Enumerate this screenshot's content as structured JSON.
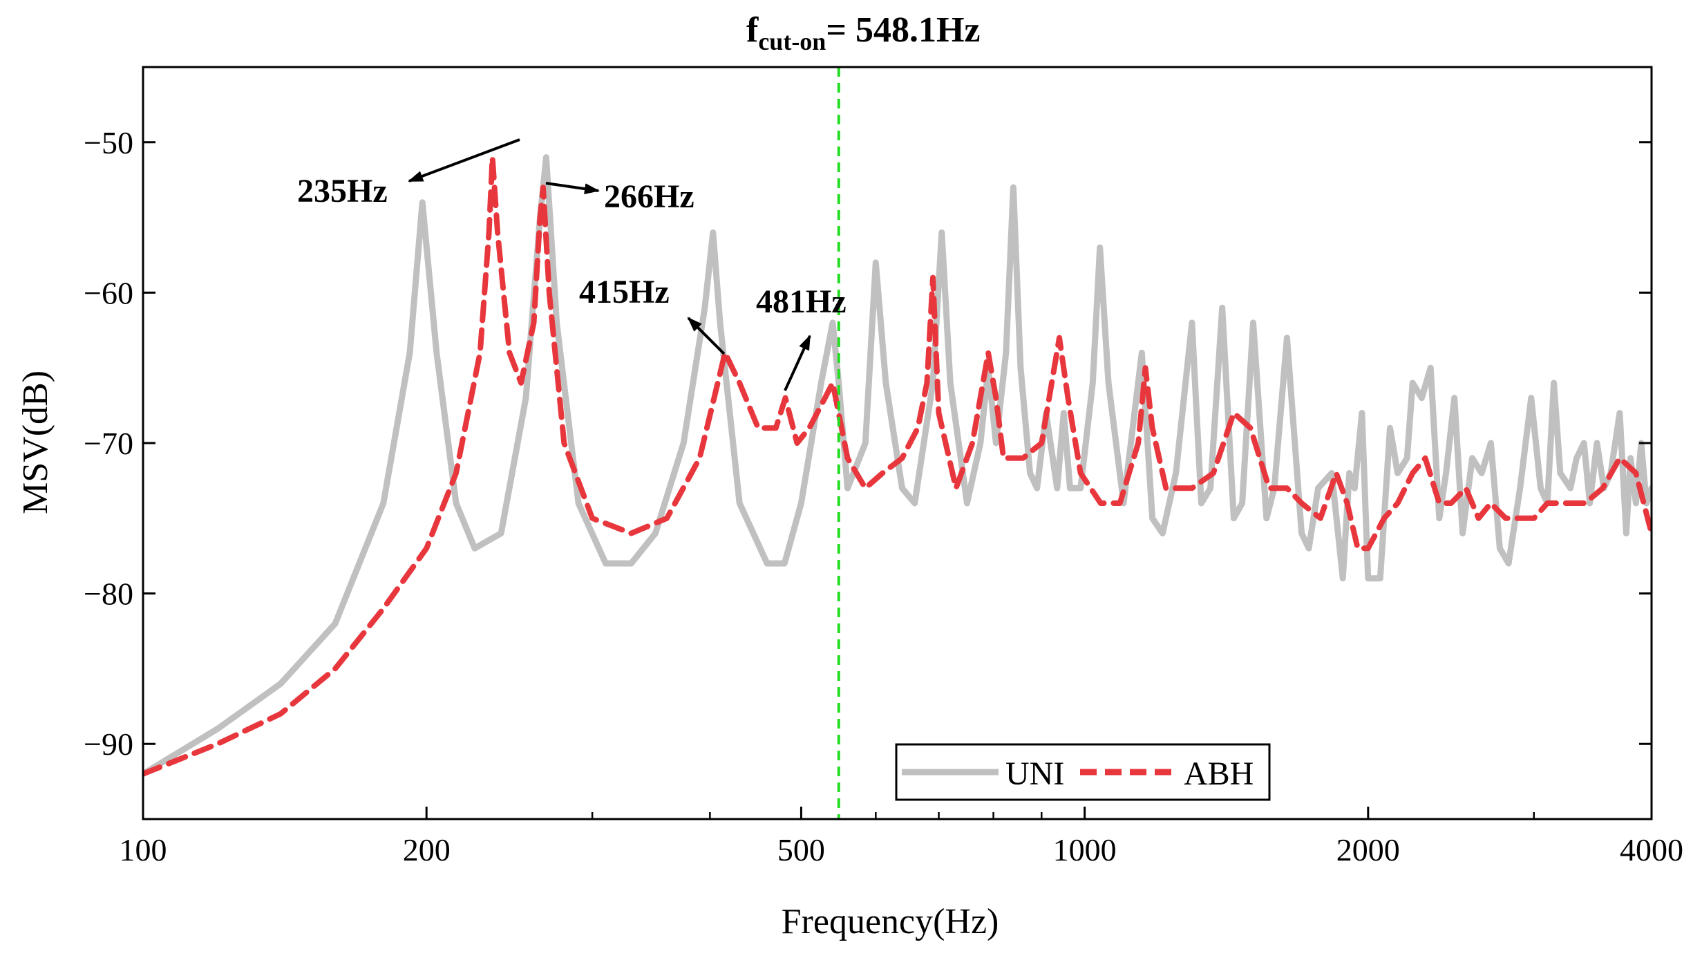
{
  "chart_data": {
    "type": "line",
    "title_main": "f",
    "title_sub": "cut-on",
    "title_rest": "= 548.1Hz",
    "xlabel": "Frequency(Hz)",
    "ylabel": "MSV(dB)",
    "xscale": "log",
    "xlim": [
      100,
      4000
    ],
    "ylim": [
      -95,
      -45
    ],
    "xticks": [
      100,
      200,
      500,
      1000,
      2000,
      4000
    ],
    "xtick_labels": [
      "100",
      "200",
      "500",
      "1000",
      "2000",
      "4000"
    ],
    "yticks": [
      -50,
      -60,
      -70,
      -80,
      -90
    ],
    "ytick_labels": [
      "−50",
      "−60",
      "−70",
      "−80",
      "−90"
    ],
    "cut_on_frequency": 548.1,
    "colors": {
      "uni": "#c0c0c0",
      "abh": "#e8363d",
      "cut_on": "#22dd22"
    },
    "legend_position": "bottom-center",
    "series": [
      {
        "name": "UNI",
        "style": "solid",
        "x": [
          100,
          120,
          140,
          160,
          180,
          192,
          198,
          205,
          215,
          225,
          240,
          255,
          264,
          268,
          275,
          290,
          310,
          330,
          350,
          375,
          395,
          403,
          410,
          430,
          460,
          480,
          500,
          525,
          540,
          548,
          560,
          585,
          600,
          615,
          640,
          660,
          690,
          705,
          720,
          750,
          775,
          790,
          805,
          825,
          840,
          855,
          875,
          890,
          910,
          935,
          950,
          965,
          990,
          1020,
          1038,
          1060,
          1100,
          1150,
          1180,
          1210,
          1250,
          1300,
          1330,
          1360,
          1400,
          1440,
          1470,
          1510,
          1560,
          1590,
          1640,
          1700,
          1730,
          1770,
          1830,
          1880,
          1910,
          1935,
          1970,
          2000,
          2060,
          2110,
          2150,
          2200,
          2230,
          2280,
          2330,
          2380,
          2420,
          2470,
          2520,
          2580,
          2640,
          2700,
          2760,
          2820,
          2900,
          2980,
          3050,
          3100,
          3150,
          3200,
          3280,
          3330,
          3390,
          3440,
          3500,
          3560,
          3620,
          3700,
          3760,
          3800,
          3850,
          3900,
          3950,
          4000
        ],
        "y": [
          -92,
          -89,
          -86,
          -82,
          -74,
          -64,
          -54,
          -64,
          -74,
          -77,
          -76,
          -67,
          -55,
          -51,
          -62,
          -74,
          -78,
          -78,
          -76,
          -70,
          -61,
          -56,
          -62,
          -74,
          -78,
          -78,
          -74,
          -66,
          -62,
          -66,
          -73,
          -70,
          -58,
          -66,
          -73,
          -74,
          -66,
          -56,
          -66,
          -74,
          -70,
          -65,
          -70,
          -64,
          -53,
          -65,
          -72,
          -73,
          -68,
          -73,
          -68,
          -73,
          -73,
          -66,
          -57,
          -66,
          -74,
          -64,
          -75,
          -76,
          -72,
          -62,
          -74,
          -73,
          -61,
          -75,
          -74,
          -62,
          -75,
          -73,
          -63,
          -76,
          -77,
          -73,
          -72,
          -79,
          -72,
          -73,
          -68,
          -79,
          -79,
          -69,
          -72,
          -71,
          -66,
          -67,
          -65,
          -75,
          -72,
          -67,
          -76,
          -71,
          -72,
          -70,
          -77,
          -78,
          -73,
          -67,
          -73,
          -74,
          -66,
          -72,
          -73,
          -71,
          -70,
          -74,
          -70,
          -73,
          -72,
          -68,
          -76,
          -71,
          -74,
          -70,
          -74,
          -73
        ],
        "labels_visible": [
          "UNI"
        ]
      },
      {
        "name": "ABH",
        "style": "dashed",
        "x": [
          100,
          120,
          140,
          160,
          180,
          200,
          215,
          228,
          233,
          235,
          238,
          245,
          252,
          260,
          264,
          266,
          270,
          280,
          300,
          330,
          360,
          390,
          415,
          430,
          450,
          470,
          481,
          495,
          510,
          530,
          540,
          560,
          585,
          610,
          640,
          665,
          680,
          690,
          700,
          730,
          760,
          790,
          805,
          820,
          860,
          900,
          940,
          960,
          990,
          1040,
          1090,
          1140,
          1160,
          1180,
          1220,
          1300,
          1370,
          1440,
          1500,
          1570,
          1640,
          1700,
          1780,
          1850,
          1900,
          1950,
          2000,
          2080,
          2150,
          2230,
          2300,
          2380,
          2450,
          2540,
          2620,
          2700,
          2800,
          2900,
          3000,
          3100,
          3250,
          3400,
          3550,
          3700,
          3850,
          4000
        ],
        "y": [
          -92,
          -90,
          -88,
          -85,
          -81,
          -77,
          -72,
          -64,
          -56,
          -51,
          -56,
          -64,
          -66,
          -62,
          -55,
          -53,
          -60,
          -70,
          -75,
          -76,
          -75,
          -71,
          -64,
          -66,
          -69,
          -69,
          -67,
          -70,
          -69,
          -67,
          -66,
          -71,
          -73,
          -72,
          -71,
          -69,
          -66,
          -59,
          -68,
          -73,
          -70,
          -64,
          -67,
          -71,
          -71,
          -70,
          -63,
          -67,
          -72,
          -74,
          -74,
          -70,
          -65,
          -69,
          -73,
          -73,
          -72,
          -68,
          -69,
          -73,
          -73,
          -74,
          -75,
          -72,
          -74,
          -77,
          -77,
          -75,
          -74,
          -72,
          -71,
          -74,
          -74,
          -73,
          -75,
          -74,
          -75,
          -75,
          -75,
          -74,
          -74,
          -74,
          -73,
          -71,
          -72,
          -76
        ],
        "labels_visible": [
          "ABH"
        ]
      }
    ],
    "annotations": [
      {
        "text": "235Hz",
        "target_x": 235
      },
      {
        "text": "266Hz",
        "target_x": 266
      },
      {
        "text": "415Hz",
        "target_x": 415
      },
      {
        "text": "481Hz",
        "target_x": 481
      }
    ],
    "legend": [
      "UNI",
      "ABH"
    ]
  }
}
